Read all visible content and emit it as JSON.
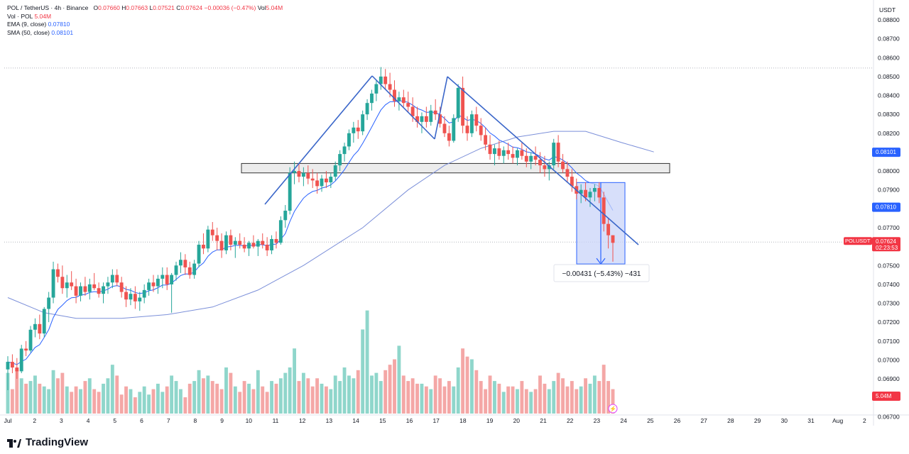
{
  "legend": {
    "symbol": "POL / TetherUS · 4h · Binance",
    "o_label": "O",
    "o": "0.07660",
    "h_label": "H",
    "h": "0.07663",
    "l_label": "L",
    "l": "0.07521",
    "c_label": "C",
    "c": "0.07624",
    "change": "−0.00036 (−0.47%)",
    "vol_label": "Vol",
    "vol": "5.04M",
    "volume_row_label": "Vol · POL",
    "volume_row_value": "5.04M",
    "ema_label": "EMA (9, close)",
    "ema_value": "0.07810",
    "sma_label": "SMA (50, close)",
    "sma_value": "0.08101"
  },
  "currency": "USDT",
  "brand": "TradingView",
  "colors": {
    "up": "#26a69a",
    "down": "#ef5350",
    "vol_up": "#8fd6cb",
    "vol_down": "#f4a7a6",
    "ema": "#2962ff",
    "sma": "#7b8fd9",
    "trendline": "#3a66c9",
    "measure_fill": "#c9d4f8",
    "price_badge": "#f23645"
  },
  "chart_data": {
    "type": "candlestick",
    "title": "POL / TetherUS · 4h · Binance",
    "y_axis": {
      "ticks": [
        "0.08800",
        "0.08700",
        "0.08600",
        "0.08500",
        "0.08400",
        "0.08300",
        "0.08200",
        "0.08100",
        "0.08000",
        "0.07900",
        "0.07800",
        "0.07700",
        "0.07600",
        "0.07500",
        "0.07400",
        "0.07300",
        "0.07200",
        "0.07100",
        "0.07000",
        "0.06900",
        "0.06800",
        "0.06700"
      ],
      "range": [
        0.067,
        0.0883
      ]
    },
    "x_axis": {
      "ticks": [
        "Jul",
        "2",
        "3",
        "4",
        "5",
        "6",
        "7",
        "8",
        "9",
        "10",
        "11",
        "12",
        "13",
        "14",
        "15",
        "16",
        "17",
        "18",
        "19",
        "20",
        "21",
        "22",
        "23",
        "24",
        "25",
        "26",
        "27",
        "28",
        "29",
        "30",
        "31",
        "Aug",
        "2"
      ]
    },
    "candles": [
      [
        0.0695,
        0.0702,
        0.0684,
        0.0699
      ],
      [
        0.0699,
        0.0703,
        0.0693,
        0.0696
      ],
      [
        0.0696,
        0.0701,
        0.069,
        0.0694
      ],
      [
        0.0694,
        0.0708,
        0.0693,
        0.0706
      ],
      [
        0.0706,
        0.071,
        0.0702,
        0.0705
      ],
      [
        0.0705,
        0.0718,
        0.0704,
        0.0716
      ],
      [
        0.0716,
        0.0722,
        0.0712,
        0.0719
      ],
      [
        0.0719,
        0.0724,
        0.0711,
        0.0714
      ],
      [
        0.0714,
        0.0728,
        0.0712,
        0.0727
      ],
      [
        0.0727,
        0.0736,
        0.072,
        0.0733
      ],
      [
        0.0733,
        0.0752,
        0.073,
        0.0748
      ],
      [
        0.0748,
        0.0751,
        0.0741,
        0.0744
      ],
      [
        0.0744,
        0.075,
        0.0735,
        0.0738
      ],
      [
        0.0738,
        0.0745,
        0.0733,
        0.0741
      ],
      [
        0.0741,
        0.0747,
        0.0737,
        0.0739
      ],
      [
        0.0739,
        0.0743,
        0.073,
        0.0734
      ],
      [
        0.0734,
        0.0741,
        0.0731,
        0.0739
      ],
      [
        0.0739,
        0.0744,
        0.0734,
        0.0736
      ],
      [
        0.0736,
        0.0743,
        0.0732,
        0.074
      ],
      [
        0.074,
        0.0746,
        0.0737,
        0.0738
      ],
      [
        0.0738,
        0.0741,
        0.0733,
        0.0735
      ],
      [
        0.0735,
        0.0741,
        0.073,
        0.0739
      ],
      [
        0.0739,
        0.0744,
        0.0735,
        0.0741
      ],
      [
        0.0741,
        0.0748,
        0.0738,
        0.0745
      ],
      [
        0.0745,
        0.0748,
        0.0739,
        0.0741
      ],
      [
        0.0741,
        0.0744,
        0.0733,
        0.0736
      ],
      [
        0.0736,
        0.0739,
        0.0728,
        0.0732
      ],
      [
        0.0732,
        0.0738,
        0.0729,
        0.0735
      ],
      [
        0.0735,
        0.0739,
        0.0727,
        0.0731
      ],
      [
        0.0731,
        0.0736,
        0.0726,
        0.0733
      ],
      [
        0.0733,
        0.074,
        0.073,
        0.0737
      ],
      [
        0.0737,
        0.0743,
        0.0734,
        0.0741
      ],
      [
        0.0741,
        0.0745,
        0.0736,
        0.0739
      ],
      [
        0.0739,
        0.0745,
        0.0735,
        0.0743
      ],
      [
        0.0743,
        0.0749,
        0.0738,
        0.0745
      ],
      [
        0.0745,
        0.0749,
        0.0737,
        0.074
      ],
      [
        0.074,
        0.0746,
        0.0725,
        0.0745
      ],
      [
        0.0745,
        0.0752,
        0.0742,
        0.075
      ],
      [
        0.075,
        0.0757,
        0.0746,
        0.0753
      ],
      [
        0.0753,
        0.0756,
        0.0745,
        0.0749
      ],
      [
        0.0749,
        0.0752,
        0.0743,
        0.0745
      ],
      [
        0.0745,
        0.0753,
        0.0743,
        0.0751
      ],
      [
        0.0751,
        0.0763,
        0.0749,
        0.0761
      ],
      [
        0.0761,
        0.0767,
        0.0756,
        0.0759
      ],
      [
        0.0759,
        0.0771,
        0.0757,
        0.0769
      ],
      [
        0.0769,
        0.0773,
        0.0763,
        0.0766
      ],
      [
        0.0766,
        0.077,
        0.0758,
        0.0763
      ],
      [
        0.0763,
        0.0767,
        0.0754,
        0.0758
      ],
      [
        0.0758,
        0.0768,
        0.0756,
        0.0766
      ],
      [
        0.0766,
        0.0769,
        0.0758,
        0.0761
      ],
      [
        0.0761,
        0.0765,
        0.0754,
        0.0763
      ],
      [
        0.0763,
        0.0767,
        0.0759,
        0.0761
      ],
      [
        0.0761,
        0.0765,
        0.0757,
        0.0759
      ],
      [
        0.0759,
        0.0763,
        0.0755,
        0.0762
      ],
      [
        0.0762,
        0.0766,
        0.0759,
        0.076
      ],
      [
        0.076,
        0.0764,
        0.0755,
        0.0763
      ],
      [
        0.0763,
        0.0767,
        0.0759,
        0.0761
      ],
      [
        0.0761,
        0.0765,
        0.0755,
        0.0758
      ],
      [
        0.0758,
        0.0766,
        0.0756,
        0.0764
      ],
      [
        0.0764,
        0.0768,
        0.0759,
        0.0762
      ],
      [
        0.0762,
        0.0776,
        0.0761,
        0.0774
      ],
      [
        0.0774,
        0.0782,
        0.077,
        0.0779
      ],
      [
        0.0779,
        0.0802,
        0.0777,
        0.0799
      ],
      [
        0.0799,
        0.0805,
        0.0793,
        0.08
      ],
      [
        0.08,
        0.0804,
        0.0794,
        0.0797
      ],
      [
        0.0797,
        0.0802,
        0.0792,
        0.0799
      ],
      [
        0.0799,
        0.0803,
        0.0793,
        0.0796
      ],
      [
        0.0796,
        0.0801,
        0.0791,
        0.0795
      ],
      [
        0.0795,
        0.0799,
        0.0788,
        0.0792
      ],
      [
        0.0792,
        0.0798,
        0.0789,
        0.0796
      ],
      [
        0.0796,
        0.08,
        0.0791,
        0.0794
      ],
      [
        0.0794,
        0.0799,
        0.0791,
        0.0797
      ],
      [
        0.0797,
        0.0805,
        0.0795,
        0.0803
      ],
      [
        0.0803,
        0.0811,
        0.08,
        0.0809
      ],
      [
        0.0809,
        0.0815,
        0.0805,
        0.0813
      ],
      [
        0.0813,
        0.0822,
        0.0811,
        0.082
      ],
      [
        0.082,
        0.0826,
        0.0815,
        0.0823
      ],
      [
        0.0823,
        0.0827,
        0.0817,
        0.0821
      ],
      [
        0.0821,
        0.0832,
        0.0819,
        0.083
      ],
      [
        0.083,
        0.0838,
        0.0827,
        0.0836
      ],
      [
        0.0836,
        0.0843,
        0.0832,
        0.0841
      ],
      [
        0.0841,
        0.0848,
        0.0837,
        0.0846
      ],
      [
        0.0846,
        0.0855,
        0.0843,
        0.085
      ],
      [
        0.085,
        0.0854,
        0.0843,
        0.0846
      ],
      [
        0.0846,
        0.0852,
        0.0839,
        0.0843
      ],
      [
        0.0843,
        0.0848,
        0.0834,
        0.0837
      ],
      [
        0.0837,
        0.0842,
        0.0832,
        0.0839
      ],
      [
        0.0839,
        0.0843,
        0.0834,
        0.0836
      ],
      [
        0.0836,
        0.0842,
        0.0831,
        0.0834
      ],
      [
        0.0834,
        0.0839,
        0.0826,
        0.0829
      ],
      [
        0.0829,
        0.0834,
        0.0823,
        0.0826
      ],
      [
        0.0826,
        0.0831,
        0.082,
        0.0829
      ],
      [
        0.0829,
        0.0834,
        0.0823,
        0.0826
      ],
      [
        0.0826,
        0.0835,
        0.0824,
        0.0832
      ],
      [
        0.0832,
        0.0838,
        0.0827,
        0.083
      ],
      [
        0.083,
        0.0834,
        0.0823,
        0.0825
      ],
      [
        0.0825,
        0.0829,
        0.0818,
        0.082
      ],
      [
        0.082,
        0.0824,
        0.0813,
        0.0816
      ],
      [
        0.0816,
        0.083,
        0.0815,
        0.0828
      ],
      [
        0.0828,
        0.0846,
        0.0826,
        0.0844
      ],
      [
        0.0844,
        0.085,
        0.082,
        0.0824
      ],
      [
        0.0824,
        0.0829,
        0.0816,
        0.082
      ],
      [
        0.082,
        0.0832,
        0.0818,
        0.083
      ],
      [
        0.083,
        0.0834,
        0.0821,
        0.0824
      ],
      [
        0.0824,
        0.0828,
        0.0816,
        0.0819
      ],
      [
        0.0819,
        0.0823,
        0.0811,
        0.0814
      ],
      [
        0.0814,
        0.0819,
        0.0806,
        0.0809
      ],
      [
        0.0809,
        0.0814,
        0.0803,
        0.0812
      ],
      [
        0.0812,
        0.0816,
        0.0806,
        0.0808
      ],
      [
        0.0808,
        0.0813,
        0.0804,
        0.0811
      ],
      [
        0.0811,
        0.0815,
        0.0806,
        0.0809
      ],
      [
        0.0809,
        0.0813,
        0.0804,
        0.0807
      ],
      [
        0.0807,
        0.0812,
        0.0803,
        0.0811
      ],
      [
        0.0811,
        0.0815,
        0.0806,
        0.0808
      ],
      [
        0.0808,
        0.0812,
        0.0802,
        0.0805
      ],
      [
        0.0805,
        0.081,
        0.0801,
        0.0808
      ],
      [
        0.0808,
        0.0813,
        0.0803,
        0.0806
      ],
      [
        0.0806,
        0.081,
        0.0799,
        0.0803
      ],
      [
        0.0803,
        0.0808,
        0.0797,
        0.0801
      ],
      [
        0.0801,
        0.0805,
        0.0795,
        0.0803
      ],
      [
        0.0803,
        0.0817,
        0.0801,
        0.0815
      ],
      [
        0.0815,
        0.0819,
        0.0802,
        0.0805
      ],
      [
        0.0805,
        0.0809,
        0.0799,
        0.0801
      ],
      [
        0.0801,
        0.0805,
        0.0794,
        0.0797
      ],
      [
        0.0797,
        0.0801,
        0.0789,
        0.0792
      ],
      [
        0.0792,
        0.0796,
        0.0785,
        0.0788
      ],
      [
        0.0788,
        0.0793,
        0.0783,
        0.079
      ],
      [
        0.079,
        0.0794,
        0.0784,
        0.0786
      ],
      [
        0.0786,
        0.0791,
        0.0781,
        0.0789
      ],
      [
        0.0789,
        0.0793,
        0.0784,
        0.0791
      ],
      [
        0.0791,
        0.0794,
        0.0783,
        0.0786
      ],
      [
        0.0786,
        0.0789,
        0.0768,
        0.0772
      ],
      [
        0.0772,
        0.0775,
        0.0759,
        0.0766
      ],
      [
        0.0766,
        0.0766,
        0.0752,
        0.0762
      ]
    ],
    "volumes": [
      1.5,
      0.9,
      1.6,
      1.3,
      1.1,
      1.2,
      1.4,
      1.1,
      1.0,
      0.9,
      1.6,
      1.3,
      1.5,
      1.0,
      0.8,
      1.0,
      0.9,
      1.2,
      1.3,
      0.9,
      0.8,
      1.1,
      1.3,
      1.8,
      1.4,
      0.7,
      1.0,
      0.9,
      0.6,
      0.8,
      1.0,
      0.7,
      0.9,
      1.1,
      0.8,
      1.0,
      1.4,
      1.2,
      0.9,
      0.6,
      1.1,
      1.2,
      1.6,
      1.3,
      1.4,
      1.2,
      1.1,
      0.9,
      1.7,
      1.5,
      1.0,
      0.8,
      1.2,
      1.1,
      0.9,
      1.6,
      1.0,
      0.8,
      1.2,
      1.1,
      1.3,
      1.5,
      1.7,
      2.4,
      1.2,
      1.5,
      1.3,
      1.0,
      1.3,
      1.1,
      1.0,
      0.9,
      1.4,
      1.2,
      1.7,
      1.4,
      1.3,
      1.6,
      3.1,
      3.8,
      1.4,
      1.5,
      1.2,
      1.6,
      1.8,
      2.0,
      2.5,
      1.4,
      1.2,
      1.3,
      1.1,
      1.1,
      1.0,
      0.9,
      1.4,
      1.3,
      1.0,
      1.2,
      1.0,
      1.7,
      2.4,
      2.1,
      2.0,
      1.6,
      1.2,
      0.9,
      1.4,
      1.2,
      1.1,
      0.8,
      1.0,
      1.0,
      0.9,
      1.2,
      0.9,
      0.8,
      0.9,
      1.4,
      1.1,
      0.9,
      1.2,
      1.5,
      1.3,
      1.0,
      1.2,
      0.9,
      1.0,
      1.3,
      1.1,
      1.4,
      1.2,
      1.8,
      1.2,
      0.9
    ],
    "ema": {
      "name": "EMA (9, close)",
      "last": 0.0781
    },
    "sma": {
      "name": "SMA (50, close)",
      "last": 0.08101
    },
    "resistance_zone": [
      0.0799,
      0.0804
    ],
    "measurement": {
      "from": 0.07939,
      "to": 0.07508,
      "label": "−0.00431 (−5.43%) −431"
    },
    "price_labels": [
      {
        "value": "0.08101",
        "kind": "sma"
      },
      {
        "value": "0.07810",
        "kind": "ema"
      },
      {
        "value": "0.07624",
        "ticker": "POLUSDT",
        "timer": "02:23:53",
        "kind": "last"
      },
      {
        "value": "5.04M",
        "kind": "volume"
      }
    ],
    "last_price": 0.07624
  }
}
